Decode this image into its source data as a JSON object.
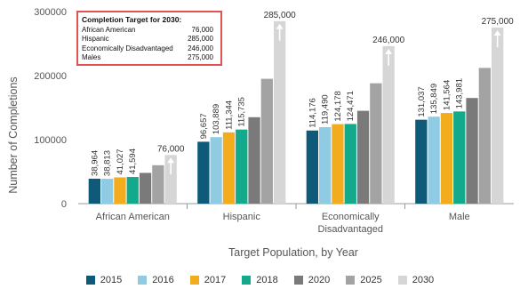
{
  "chart_data": {
    "type": "bar",
    "categories": [
      "African American",
      "Hispanic",
      "Economically\nDisadvantaged",
      "Male"
    ],
    "series": [
      {
        "name": "2015",
        "color": "#0e5a78",
        "values": [
          38964,
          96657,
          114176,
          131037
        ]
      },
      {
        "name": "2016",
        "color": "#8fcce4",
        "values": [
          38813,
          103889,
          119490,
          135849
        ]
      },
      {
        "name": "2017",
        "color": "#f2ac1e",
        "values": [
          41027,
          111344,
          124178,
          141564
        ]
      },
      {
        "name": "2018",
        "color": "#13a98b",
        "values": [
          41594,
          115735,
          124471,
          143981
        ]
      },
      {
        "name": "2020",
        "color": "#7a7a7a",
        "values": [
          48000,
          135000,
          145000,
          165000
        ]
      },
      {
        "name": "2025",
        "color": "#a3a3a3",
        "values": [
          60000,
          195000,
          188000,
          212000
        ]
      },
      {
        "name": "2030",
        "color": "#d6d6d6",
        "values": [
          76000,
          285000,
          246000,
          275000
        ]
      }
    ],
    "value_labels_series": [
      "2015",
      "2016",
      "2017",
      "2018"
    ],
    "target_labels": [
      "76,000",
      "285,000",
      "246,000",
      "275,000"
    ],
    "xlabel": "Target Population, by Year",
    "ylabel": "Number of Completions",
    "ylim": [
      0,
      300000
    ],
    "yticks": [
      "0",
      "100000",
      "200000",
      "300000"
    ],
    "grid": false,
    "legend_position": "bottom",
    "target_box": {
      "title": "Completion Target for 2030:",
      "rows": [
        {
          "label": "African American",
          "value": "76,000"
        },
        {
          "label": "Hispanic",
          "value": "285,000"
        },
        {
          "label": "Economically Disadvantaged",
          "value": "246,000"
        },
        {
          "label": "Males",
          "value": "275,000"
        }
      ]
    }
  }
}
